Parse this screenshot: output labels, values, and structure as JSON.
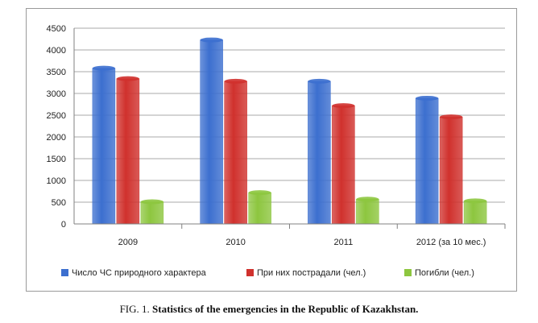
{
  "chart_data": {
    "type": "bar",
    "categories": [
      "2009",
      "2010",
      "2011",
      "2012 (за 10 мес.)"
    ],
    "series": [
      {
        "name": "Число ЧС природного характера",
        "values": [
          3580,
          4230,
          3280,
          2890
        ],
        "color": "#3c6fcf"
      },
      {
        "name": "При них пострадали (чел.)",
        "values": [
          3340,
          3280,
          2720,
          2460
        ],
        "color": "#d0312d"
      },
      {
        "name": "Погибли (чел.)",
        "values": [
          510,
          720,
          570,
          530
        ],
        "color": "#8dc63f"
      }
    ],
    "title": "",
    "xlabel": "",
    "ylabel": "",
    "ylim": [
      0,
      4500
    ],
    "yticks": [
      0,
      500,
      1000,
      1500,
      2000,
      2500,
      3000,
      3500,
      4000,
      4500
    ],
    "grid": true,
    "legend": "bottom"
  },
  "caption": {
    "prefix": "FIG. 1.",
    "text": "Statistics of the emergencies in the Republic of Kazakhstan."
  }
}
